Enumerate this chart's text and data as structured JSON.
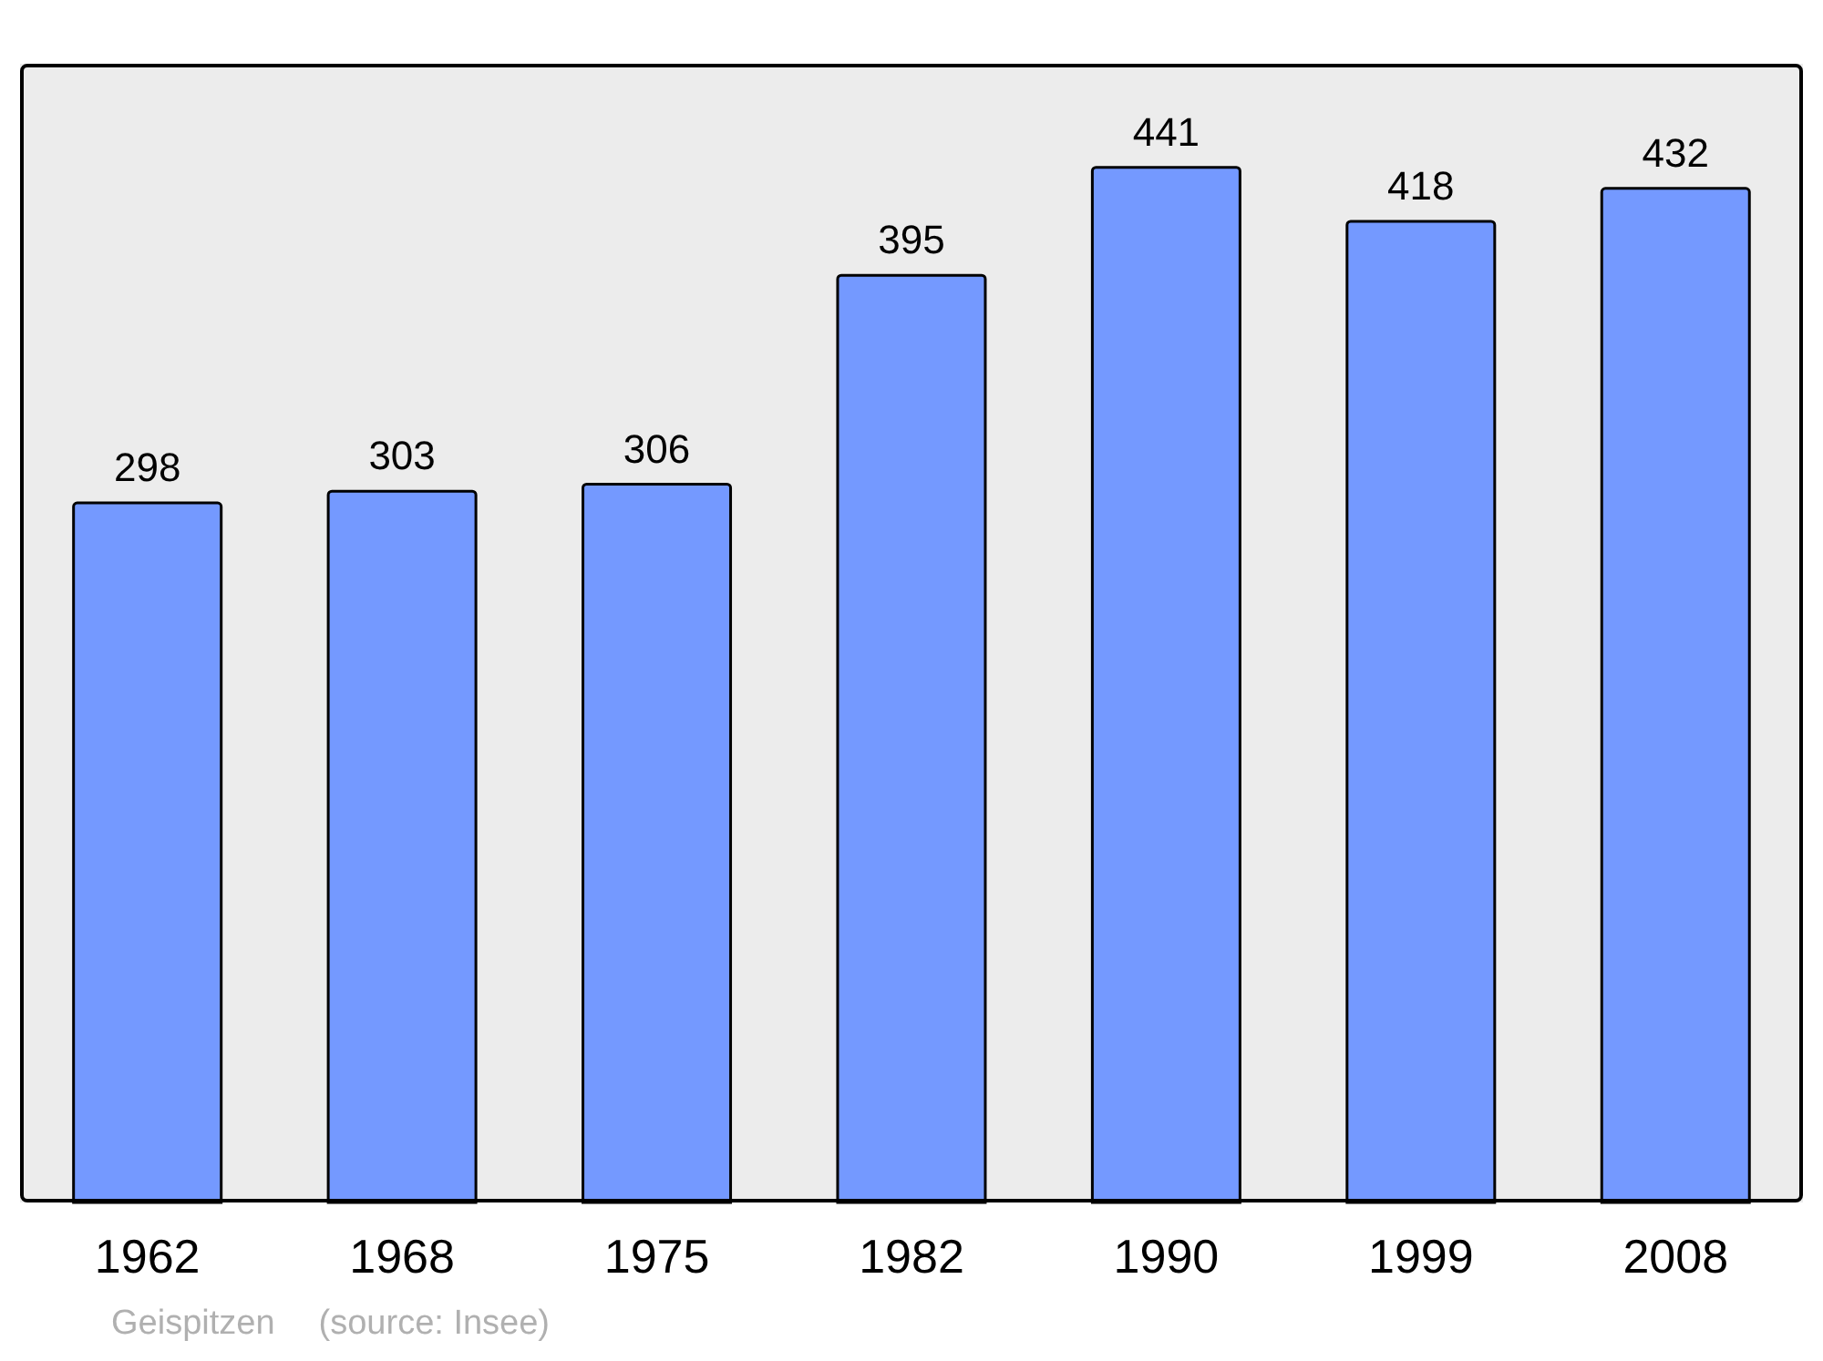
{
  "chart_data": {
    "type": "bar",
    "categories": [
      "1962",
      "1968",
      "1975",
      "1982",
      "1990",
      "1999",
      "2008"
    ],
    "values": [
      298,
      303,
      306,
      395,
      441,
      418,
      432
    ],
    "color": "#7499ff",
    "data_labels": true,
    "grid": false,
    "annotations": [
      "Geispitzen",
      "(source: Insee)"
    ]
  }
}
